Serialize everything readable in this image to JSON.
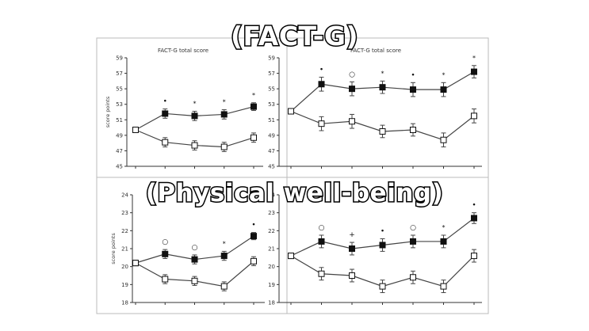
{
  "overlay": {
    "top_caption": "(FACT-G)",
    "bottom_caption": "(Physical well-being)"
  },
  "colors": {
    "background": "#ffffff",
    "axis": "#333333",
    "line": "#444444",
    "filled_marker": "#111111",
    "open_marker": "#ffffff",
    "overlay_text": "#ffffff",
    "overlay_stroke": "#000000"
  },
  "chart_data": [
    {
      "type": "line",
      "title": "FACT-G total score",
      "ylabel": "score points",
      "ylim": [
        45,
        59
      ],
      "yticks": [
        "45",
        "47",
        "49",
        "51",
        "53",
        "55",
        "57",
        "59"
      ],
      "x": [
        0,
        1,
        2,
        3,
        4
      ],
      "series": [
        {
          "marker": "filled-square",
          "values": [
            49.7,
            51.8,
            51.5,
            51.7,
            52.7
          ],
          "errors": [
            0,
            0.6,
            0.6,
            0.6,
            0.5
          ]
        },
        {
          "marker": "open-square",
          "values": [
            49.7,
            48.1,
            47.7,
            47.5,
            48.7
          ],
          "errors": [
            0,
            0.6,
            0.6,
            0.6,
            0.6
          ]
        }
      ],
      "significance": [
        null,
        "•",
        "*",
        "*",
        "*"
      ]
    },
    {
      "type": "line",
      "title": "FACT-G total score",
      "ylabel": "",
      "ylim": [
        45,
        59
      ],
      "yticks": [
        "45",
        "47",
        "49",
        "51",
        "53",
        "55",
        "57",
        "59"
      ],
      "x": [
        0,
        1,
        2,
        3,
        4,
        5,
        6
      ],
      "series": [
        {
          "marker": "filled-square",
          "values": [
            52.1,
            55.6,
            55.0,
            55.2,
            54.9,
            54.9,
            57.2
          ],
          "errors": [
            0,
            0.9,
            0.9,
            0.8,
            0.9,
            0.9,
            0.8
          ]
        },
        {
          "marker": "open-square",
          "values": [
            52.1,
            50.5,
            50.8,
            49.5,
            49.7,
            48.4,
            51.5
          ],
          "errors": [
            0,
            0.9,
            0.9,
            0.8,
            0.8,
            0.9,
            0.9
          ]
        }
      ],
      "significance": [
        null,
        "•",
        "○",
        "*",
        "•",
        "*",
        "*"
      ]
    },
    {
      "type": "line",
      "title": "",
      "ylabel": "score points",
      "ylim": [
        18,
        24
      ],
      "yticks": [
        "18",
        "19",
        "20",
        "21",
        "22",
        "23",
        "24"
      ],
      "x": [
        0,
        1,
        2,
        3,
        4
      ],
      "series": [
        {
          "marker": "filled-square",
          "values": [
            20.2,
            20.7,
            20.4,
            20.6,
            21.7
          ],
          "errors": [
            0,
            0.25,
            0.25,
            0.25,
            0.2
          ]
        },
        {
          "marker": "open-square",
          "values": [
            20.2,
            19.3,
            19.2,
            18.9,
            20.3
          ],
          "errors": [
            0,
            0.25,
            0.25,
            0.25,
            0.25
          ]
        }
      ],
      "significance": [
        null,
        "○",
        "○",
        "*",
        "•"
      ]
    },
    {
      "type": "line",
      "title": "",
      "ylabel": "",
      "ylim": [
        18,
        24
      ],
      "yticks": [
        "18",
        "19",
        "20",
        "21",
        "22",
        "23",
        "24"
      ],
      "x": [
        0,
        1,
        2,
        3,
        4,
        5,
        6
      ],
      "series": [
        {
          "marker": "filled-square",
          "values": [
            20.6,
            21.4,
            21.0,
            21.2,
            21.4,
            21.4,
            22.7
          ],
          "errors": [
            0,
            0.35,
            0.35,
            0.35,
            0.35,
            0.35,
            0.3
          ]
        },
        {
          "marker": "open-square",
          "values": [
            20.6,
            19.6,
            19.5,
            18.9,
            19.4,
            18.9,
            20.6
          ],
          "errors": [
            0,
            0.35,
            0.35,
            0.35,
            0.35,
            0.35,
            0.35
          ]
        }
      ],
      "significance": [
        null,
        "○",
        "+",
        "•",
        "○",
        "*",
        "•"
      ]
    }
  ]
}
